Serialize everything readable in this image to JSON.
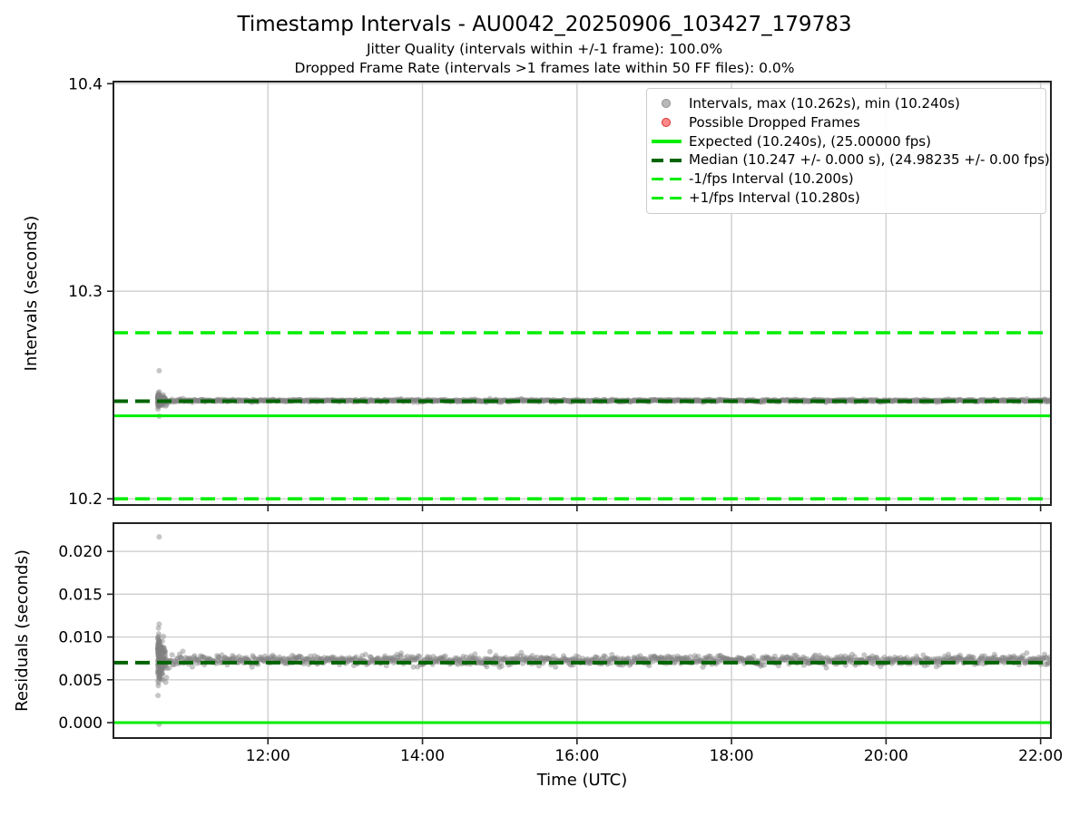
{
  "title": "Timestamp Intervals - AU0042_20250906_103427_179783",
  "subtitle1": "Jitter Quality (intervals within +/-1 frame): 100.0%",
  "subtitle2": "Dropped Frame Rate (intervals >1 frames late within 50 FF files): 0.0%",
  "colors": {
    "lime": "#00ee00",
    "darkgreen": "#006400",
    "gray": "#808080",
    "red": "#e03030",
    "grid": "#cfcfcf",
    "spine": "#222222",
    "text": "#000000"
  },
  "legend": {
    "items": [
      {
        "marker": "dot-gray",
        "label": "Intervals, max (10.262s), min (10.240s)"
      },
      {
        "marker": "dot-red",
        "label": "Possible Dropped Frames"
      },
      {
        "marker": "solid-lime",
        "label": "Expected (10.240s), (25.00000 fps)"
      },
      {
        "marker": "dash-darkgreen",
        "label": "Median (10.247 +/- 0.000 s), (24.98235 +/- 0.00 fps)"
      },
      {
        "marker": "dash-lime",
        "label": "-1/fps Interval (10.200s)"
      },
      {
        "marker": "dash-lime",
        "label": "+1/fps Interval (10.280s)"
      }
    ]
  },
  "chart_data": {
    "type": "scatter",
    "title": "Timestamp Intervals - AU0042_20250906_103427_179783",
    "stats": {
      "jitter_quality_pct": 100.0,
      "dropped_frame_rate_pct": 0.0,
      "ff_files_window": 50,
      "expected_interval_s": 10.24,
      "expected_fps": 25.0,
      "median_interval_s": 10.247,
      "median_interval_err_s": 0.0,
      "median_fps": 24.98235,
      "median_fps_err": 0.0,
      "max_interval_s": 10.262,
      "min_interval_s": 10.24,
      "minus_1fps_interval_s": 10.2,
      "plus_1fps_interval_s": 10.28
    },
    "x": {
      "label": "Time (UTC)",
      "lim_minutes": [
        600,
        1328
      ],
      "ticks": [
        {
          "minute": 720,
          "label": "12:00"
        },
        {
          "minute": 840,
          "label": "14:00"
        },
        {
          "minute": 960,
          "label": "16:00"
        },
        {
          "minute": 1080,
          "label": "18:00"
        },
        {
          "minute": 1200,
          "label": "20:00"
        },
        {
          "minute": 1320,
          "label": "22:00"
        }
      ]
    },
    "panels": [
      {
        "name": "intervals",
        "ylabel": "Intervals (seconds)",
        "ylim": [
          10.197,
          10.401
        ],
        "yticks": [
          10.2,
          10.3,
          10.4
        ],
        "ytick_labels": [
          "10.2",
          "10.3",
          "10.4"
        ],
        "value_mode": "interval",
        "show_xticklabels": false,
        "lines": [
          {
            "name": "expected-line",
            "value": 10.24,
            "color": "lime",
            "style": "solid",
            "width": 3
          },
          {
            "name": "minus-1fps-line",
            "value": 10.2,
            "color": "lime",
            "style": "dashed",
            "width": 3.5
          },
          {
            "name": "plus-1fps-line",
            "value": 10.28,
            "color": "lime",
            "style": "dashed",
            "width": 3.5
          },
          {
            "name": "median-line",
            "value": 10.247,
            "color": "darkgreen",
            "style": "dashed",
            "width": 4
          }
        ]
      },
      {
        "name": "residuals",
        "ylabel": "Residuals (seconds)",
        "ylim": [
          -0.0018,
          0.0233
        ],
        "yticks": [
          0.0,
          0.005,
          0.01,
          0.015,
          0.02
        ],
        "ytick_labels": [
          "0.000",
          "0.005",
          "0.010",
          "0.015",
          "0.020"
        ],
        "value_mode": "residual",
        "show_xticklabels": true,
        "lines": [
          {
            "name": "zero-line",
            "value": 0.0,
            "color": "lime",
            "style": "solid",
            "width": 3
          },
          {
            "name": "median-residual-line",
            "value": 0.007,
            "color": "darkgreen",
            "style": "dashed",
            "width": 4
          }
        ]
      }
    ],
    "scatter": {
      "marker_radius": 3,
      "marker_alpha": 0.45,
      "band": {
        "start_minute": 634.5,
        "end_minute": 1328,
        "center_s": 10.2473,
        "sigma_s": 0.00028,
        "n_points": 1200,
        "start_bulge": {
          "sigma_s": 0.0011,
          "decay_minutes": 10,
          "extra_points": 150
        }
      },
      "outliers": [
        {
          "minute": 635.5,
          "interval_s": 10.2617
        },
        {
          "minute": 635.5,
          "interval_s": 10.2515
        },
        {
          "minute": 636.0,
          "interval_s": 10.2495
        },
        {
          "minute": 635.2,
          "interval_s": 10.2458
        },
        {
          "minute": 635.5,
          "interval_s": 10.2398
        }
      ],
      "possible_dropped_frames": []
    }
  }
}
